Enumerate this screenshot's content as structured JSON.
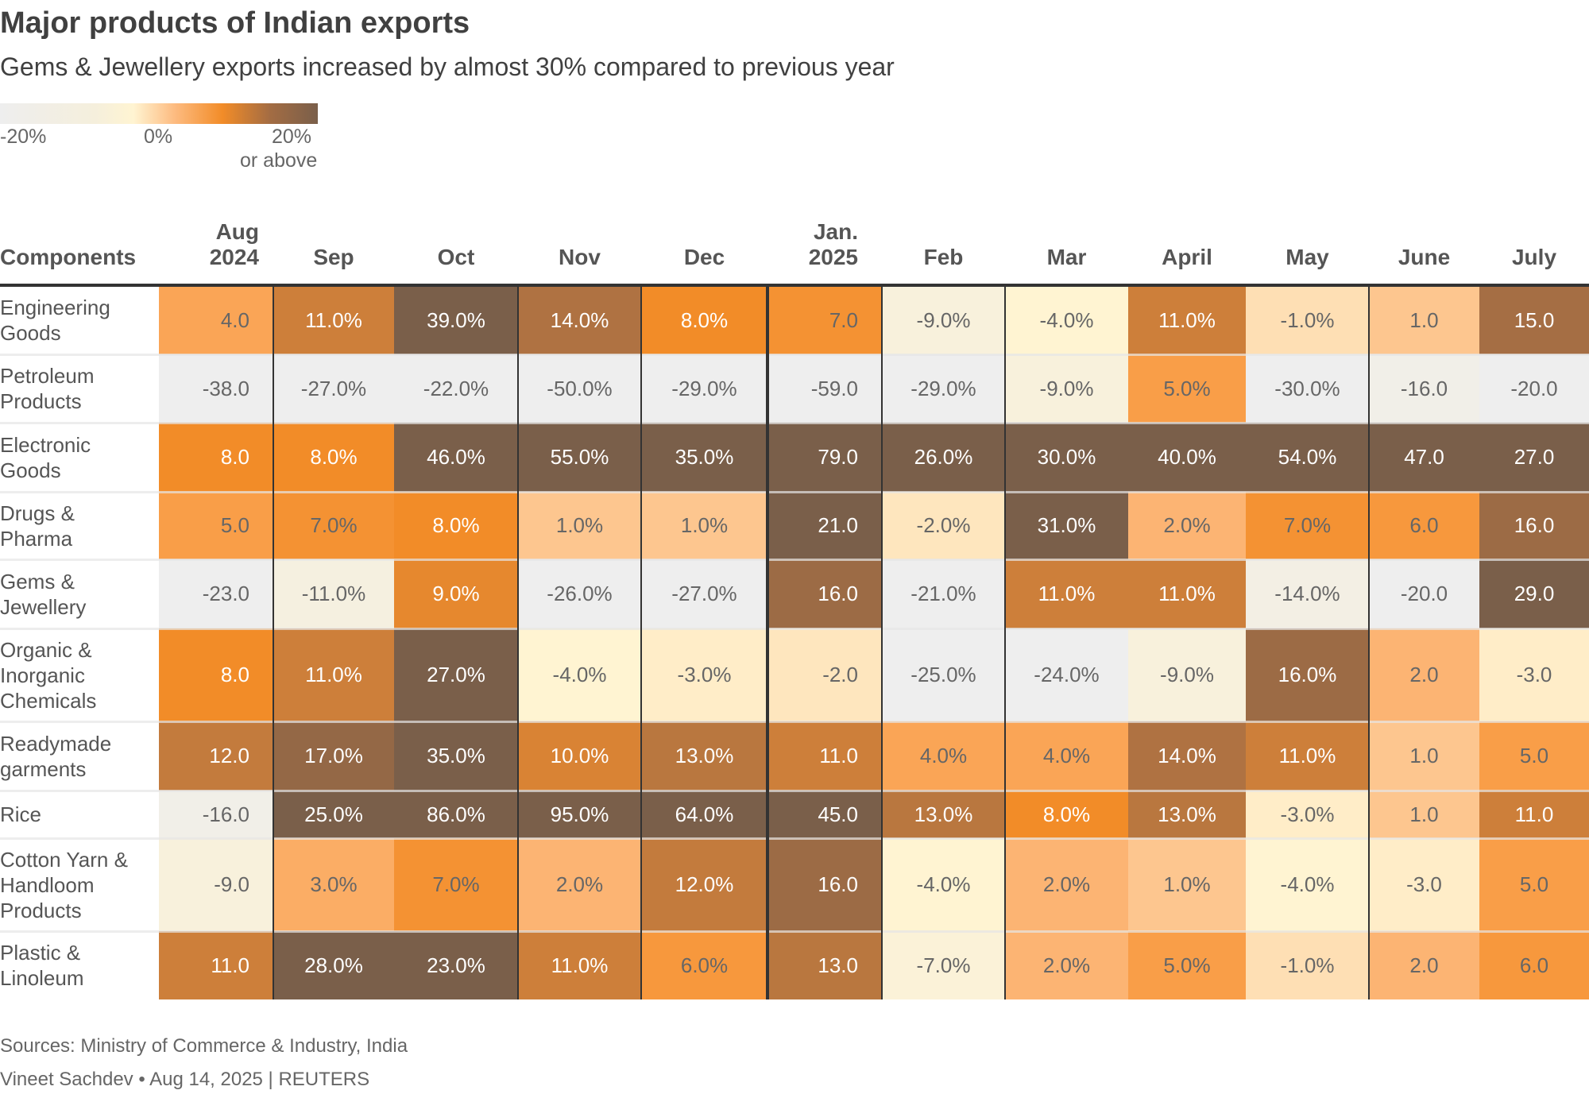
{
  "title": "Major products of Indian exports",
  "subtitle": "Gems & Jewellery exports increased by almost 30% compared to previous year",
  "legend": {
    "min_label": "-20%",
    "mid_label": "0%",
    "max_label": "20%",
    "max_sub": "or above"
  },
  "sources": "Sources: Ministry of Commerce & Industry, India",
  "credit": "Vineet Sachdev • Aug 14, 2025 | REUTERS",
  "colors": {
    "low": "#eeeeee",
    "neutral": "#fff4d2",
    "mid": "#f28c28",
    "high": "#7a5f4a"
  },
  "chart_data": {
    "type": "heatmap",
    "row_header": "Components",
    "columns": [
      [
        "Aug",
        "2024"
      ],
      [
        "Sep"
      ],
      [
        "Oct"
      ],
      [
        "Nov"
      ],
      [
        "Dec"
      ],
      [
        "Jan.",
        "2025"
      ],
      [
        "Feb"
      ],
      [
        "Mar"
      ],
      [
        "April"
      ],
      [
        "May"
      ],
      [
        "June"
      ],
      [
        "July"
      ]
    ],
    "color_scale": {
      "min": -20,
      "max": 20
    },
    "rows": [
      {
        "label": [
          "Engineering",
          "Goods"
        ],
        "values": [
          "4.0",
          "11.0%",
          "39.0%",
          "14.0%",
          "8.0%",
          "7.0",
          "-9.0%",
          "-4.0%",
          "11.0%",
          "-1.0%",
          "1.0",
          "15.0"
        ]
      },
      {
        "label": [
          "Petroleum",
          "Products"
        ],
        "values": [
          "-38.0",
          "-27.0%",
          "-22.0%",
          "-50.0%",
          "-29.0%",
          "-59.0",
          "-29.0%",
          "-9.0%",
          "5.0%",
          "-30.0%",
          "-16.0",
          "-20.0"
        ]
      },
      {
        "label": [
          "Electronic",
          "Goods"
        ],
        "values": [
          "8.0",
          "8.0%",
          "46.0%",
          "55.0%",
          "35.0%",
          "79.0",
          "26.0%",
          "30.0%",
          "40.0%",
          "54.0%",
          "47.0",
          "27.0"
        ]
      },
      {
        "label": [
          "Drugs &",
          "Pharma"
        ],
        "values": [
          "5.0",
          "7.0%",
          "8.0%",
          "1.0%",
          "1.0%",
          "21.0",
          "-2.0%",
          "31.0%",
          "2.0%",
          "7.0%",
          "6.0",
          "16.0"
        ]
      },
      {
        "label": [
          "Gems &",
          "Jewellery"
        ],
        "values": [
          "-23.0",
          "-11.0%",
          "9.0%",
          "-26.0%",
          "-27.0%",
          "16.0",
          "-21.0%",
          "11.0%",
          "11.0%",
          "-14.0%",
          "-20.0",
          "29.0"
        ]
      },
      {
        "label": [
          "Organic &",
          "Inorganic",
          "Chemicals"
        ],
        "values": [
          "8.0",
          "11.0%",
          "27.0%",
          "-4.0%",
          "-3.0%",
          "-2.0",
          "-25.0%",
          "-24.0%",
          "-9.0%",
          "16.0%",
          "2.0",
          "-3.0"
        ]
      },
      {
        "label": [
          "Readymade",
          "garments"
        ],
        "values": [
          "12.0",
          "17.0%",
          "35.0%",
          "10.0%",
          "13.0%",
          "11.0",
          "4.0%",
          "4.0%",
          "14.0%",
          "11.0%",
          "1.0",
          "5.0"
        ]
      },
      {
        "label": [
          "Rice"
        ],
        "values": [
          "-16.0",
          "25.0%",
          "86.0%",
          "95.0%",
          "64.0%",
          "45.0",
          "13.0%",
          "8.0%",
          "13.0%",
          "-3.0%",
          "1.0",
          "11.0"
        ]
      },
      {
        "label": [
          "Cotton Yarn &",
          "Handloom",
          "Products"
        ],
        "values": [
          "-9.0",
          "3.0%",
          "7.0%",
          "2.0%",
          "12.0%",
          "16.0",
          "-4.0%",
          "2.0%",
          "1.0%",
          "-4.0%",
          "-3.0",
          "5.0"
        ]
      },
      {
        "label": [
          "Plastic &",
          "Linoleum"
        ],
        "values": [
          "11.0",
          "28.0%",
          "23.0%",
          "11.0%",
          "6.0%",
          "13.0",
          "-7.0%",
          "2.0%",
          "5.0%",
          "-1.0%",
          "2.0",
          "6.0"
        ]
      }
    ]
  }
}
